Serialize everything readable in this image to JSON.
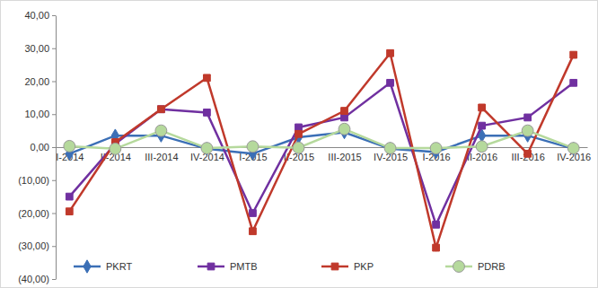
{
  "chart_data": {
    "type": "line",
    "categories": [
      "I-2014",
      "II-2014",
      "III-2014",
      "IV-2014",
      "I-2015",
      "II-2015",
      "III-2015",
      "IV-2015",
      "I-2016",
      "II-2016",
      "III-2016",
      "IV-2016"
    ],
    "series": [
      {
        "name": "PKRT",
        "color": "#3b6fb6",
        "marker": "diamond",
        "values": [
          -2,
          3.5,
          3.5,
          -0.5,
          -2,
          3,
          4.5,
          -0.5,
          -1.5,
          3.5,
          3.5,
          -0.5
        ]
      },
      {
        "name": "PMTB",
        "color": "#7030a0",
        "marker": "square",
        "values": [
          -15,
          1,
          11.5,
          10.5,
          -20,
          6,
          9,
          19.5,
          -23.5,
          6.5,
          9,
          19.5
        ]
      },
      {
        "name": "PKP",
        "color": "#c0392b",
        "marker": "square",
        "values": [
          -19.5,
          1.5,
          11.5,
          21,
          -25.5,
          4,
          11,
          28.5,
          -30.5,
          12,
          -2,
          28
        ]
      },
      {
        "name": "PDRB",
        "color": "#b5d99c",
        "marker": "circle",
        "values": [
          0.3,
          -0.5,
          5,
          -0.3,
          0.2,
          -0.2,
          5.5,
          -0.3,
          -0.3,
          0.2,
          5,
          -0.3
        ]
      }
    ],
    "ylim": [
      -40,
      40
    ],
    "yticks": [
      {
        "value": -40,
        "label": "(40,00)"
      },
      {
        "value": -30,
        "label": "(30,00)"
      },
      {
        "value": -20,
        "label": "(20,00)"
      },
      {
        "value": -10,
        "label": "(10,00)"
      },
      {
        "value": 0,
        "label": "0,00"
      },
      {
        "value": 10,
        "label": "10,00"
      },
      {
        "value": 20,
        "label": "20,00"
      },
      {
        "value": 30,
        "label": "30,00"
      },
      {
        "value": 40,
        "label": "40,00"
      }
    ],
    "grid": false,
    "legend": "bottom"
  }
}
